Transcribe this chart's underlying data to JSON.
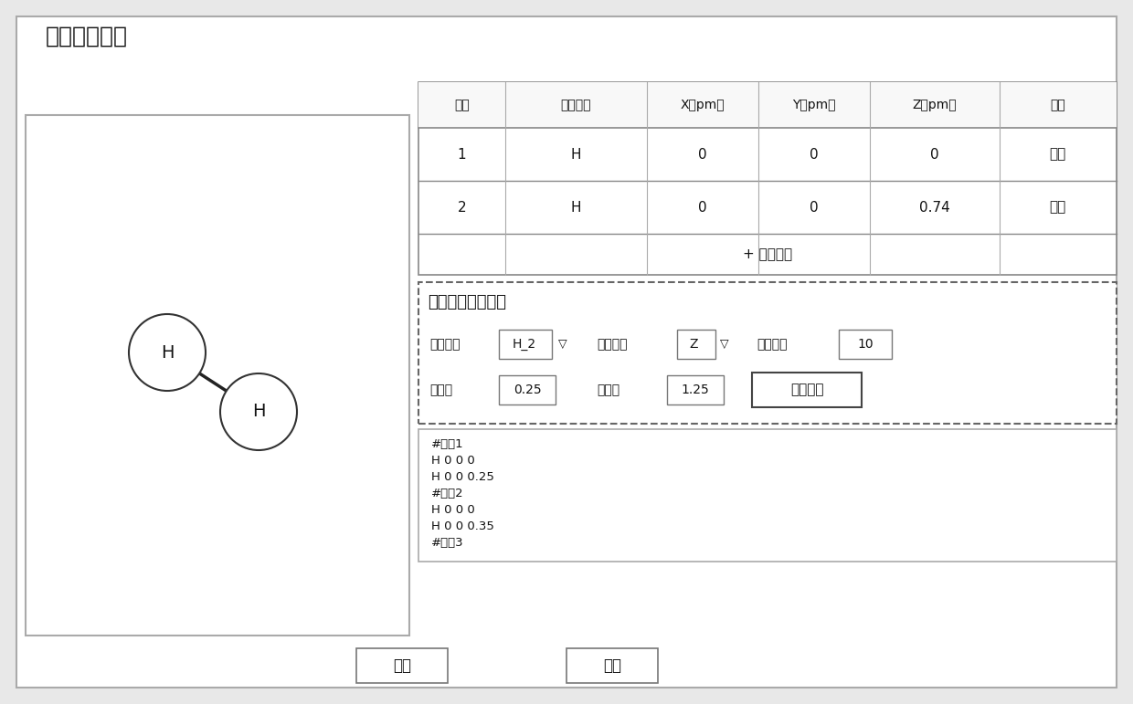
{
  "title": "分子模型配置",
  "bg_color": "#e8e8e8",
  "panel_bg": "#ffffff",
  "table_col_headers": [
    "编号",
    "原子类型",
    "X（pm）",
    "Y（pm）",
    "Z（pm）",
    "操作"
  ],
  "table_rows": [
    [
      "1",
      "H",
      "0",
      "0",
      "0",
      "删除"
    ],
    [
      "2",
      "H",
      "0",
      "0",
      "0.74",
      "删除"
    ]
  ],
  "add_atom_text": "+ 添加原子",
  "quick_settings_title": "快速设置一组坐标",
  "atom_type_label": "原子类型",
  "atom_type_value": "H_2",
  "scan_coord_label": "扫描坐标",
  "scan_coord_value": "Z",
  "node_count_label": "节点个数",
  "node_count_value": "10",
  "start_value_label": "起始値",
  "start_value": "0.25",
  "end_value_label": "结束値",
  "end_value": "1.25",
  "quick_gen_button": "快速生成",
  "text_area_lines": [
    "#节点1",
    "H 0 0 0",
    "H 0 0 0.25",
    "#节点2",
    "H 0 0 0",
    "H 0 0 0.35",
    "#节点3"
  ],
  "ok_button": "确定",
  "cancel_button": "取消"
}
